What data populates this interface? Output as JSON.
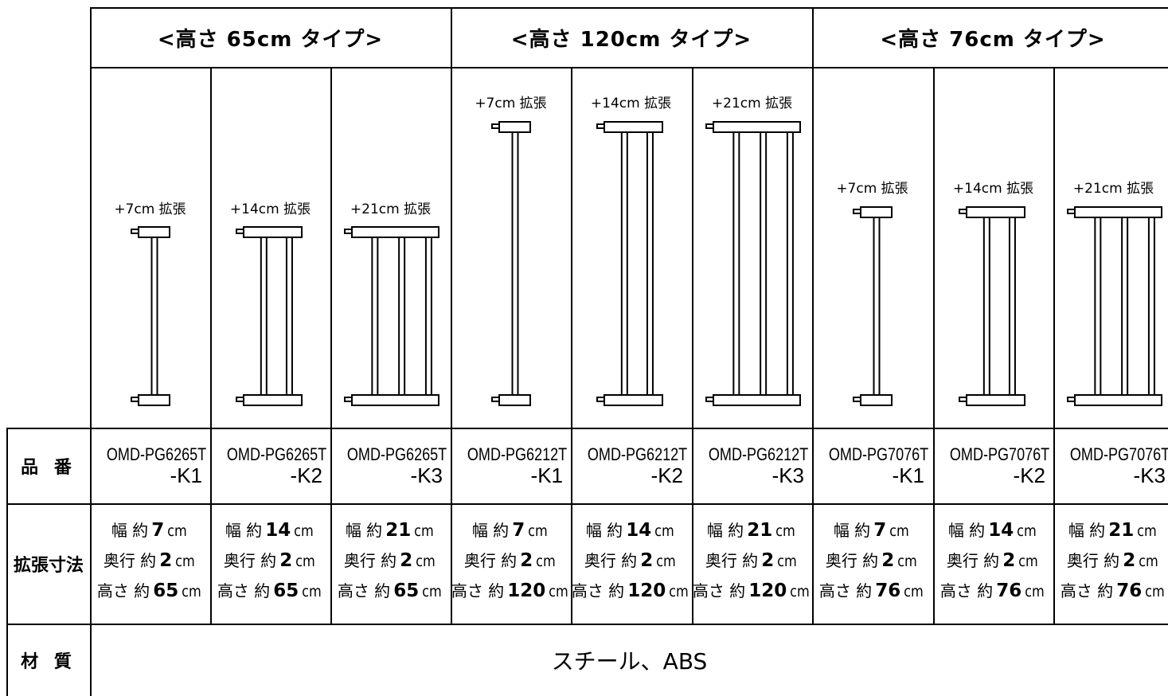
{
  "groups": [
    {
      "title": "<高さ 65cm タイプ>"
    },
    {
      "title": "<高さ 120cm タイプ>"
    },
    {
      "title": "<高さ 76cm タイプ>"
    }
  ],
  "row_labels": {
    "model": "品 番",
    "size": "拡張寸法",
    "material": "材 質"
  },
  "columns": [
    {
      "ext_label": "+7cm 拡張",
      "bars": 1,
      "model_code": "OMD-PG6265T",
      "model_suffix": "-K1",
      "width_label": "幅 約",
      "width_value": "7",
      "depth_label": "奥行 約",
      "depth_value": "2",
      "height_label": "高さ 約",
      "height_value": "65",
      "unit": "cm"
    },
    {
      "ext_label": "+14cm 拡張",
      "bars": 2,
      "model_code": "OMD-PG6265T",
      "model_suffix": "-K2",
      "width_label": "幅 約",
      "width_value": "14",
      "depth_label": "奥行 約",
      "depth_value": "2",
      "height_label": "高さ 約",
      "height_value": "65",
      "unit": "cm"
    },
    {
      "ext_label": "+21cm 拡張",
      "bars": 3,
      "model_code": "OMD-PG6265T",
      "model_suffix": "-K3",
      "width_label": "幅 約",
      "width_value": "21",
      "depth_label": "奥行 約",
      "depth_value": "2",
      "height_label": "高さ 約",
      "height_value": "65",
      "unit": "cm"
    },
    {
      "ext_label": "+7cm 拡張",
      "bars": 1,
      "model_code": "OMD-PG6212T",
      "model_suffix": "-K1",
      "width_label": "幅 約",
      "width_value": "7",
      "depth_label": "奥行 約",
      "depth_value": "2",
      "height_label": "高さ 約",
      "height_value": "120",
      "unit": "cm"
    },
    {
      "ext_label": "+14cm 拡張",
      "bars": 2,
      "model_code": "OMD-PG6212T",
      "model_suffix": "-K2",
      "width_label": "幅 約",
      "width_value": "14",
      "depth_label": "奥行 約",
      "depth_value": "2",
      "height_label": "高さ 約",
      "height_value": "120",
      "unit": "cm"
    },
    {
      "ext_label": "+21cm 拡張",
      "bars": 3,
      "model_code": "OMD-PG6212T",
      "model_suffix": "-K3",
      "width_label": "幅 約",
      "width_value": "21",
      "depth_label": "奥行 約",
      "depth_value": "2",
      "height_label": "高さ 約",
      "height_value": "120",
      "unit": "cm"
    },
    {
      "ext_label": "+7cm 拡張",
      "bars": 1,
      "model_code": "OMD-PG7076T",
      "model_suffix": "-K1",
      "width_label": "幅 約",
      "width_value": "7",
      "depth_label": "奥行 約",
      "depth_value": "2",
      "height_label": "高さ 約",
      "height_value": "76",
      "unit": "cm"
    },
    {
      "ext_label": "+14cm 拡張",
      "bars": 2,
      "model_code": "OMD-PG7076T",
      "model_suffix": "-K2",
      "width_label": "幅 約",
      "width_value": "14",
      "depth_label": "奥行 約",
      "depth_value": "2",
      "height_label": "高さ 約",
      "height_value": "76",
      "unit": "cm"
    },
    {
      "ext_label": "+21cm 拡張",
      "bars": 3,
      "model_code": "OMD-PG7076T",
      "model_suffix": "-K3",
      "width_label": "幅 約",
      "width_value": "21",
      "depth_label": "奥行 約",
      "depth_value": "2",
      "height_label": "高さ 約",
      "height_value": "76",
      "unit": "cm"
    }
  ],
  "material": "スチール、ABS"
}
